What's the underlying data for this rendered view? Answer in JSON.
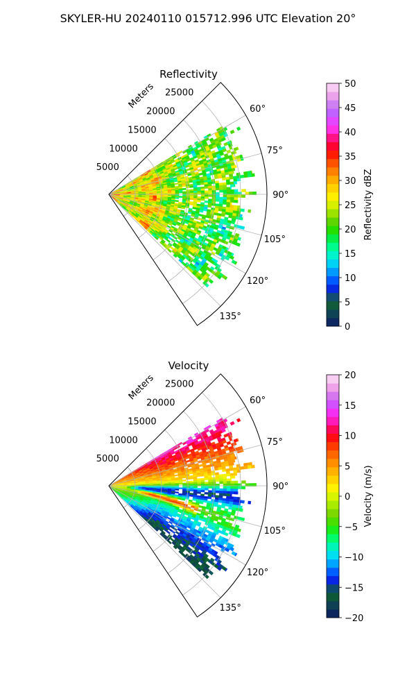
{
  "figure": {
    "suptitle": "SKYLER-HU  20240110  015712.996 UTC Elevation 20°"
  },
  "chart_data": [
    {
      "type": "heatmap",
      "projection": "polar-sector",
      "title": "Reflectivity",
      "range_label": "Meters",
      "theta_min_deg": 45,
      "theta_max_deg": 146,
      "r_max": 30000,
      "angle_ticks": [
        {
          "deg": 60,
          "label": "60°"
        },
        {
          "deg": 75,
          "label": "75°"
        },
        {
          "deg": 90,
          "label": "90°"
        },
        {
          "deg": 105,
          "label": "105°"
        },
        {
          "deg": 120,
          "label": "120°"
        },
        {
          "deg": 135,
          "label": "135°"
        }
      ],
      "range_ticks": [
        {
          "value": 5000,
          "label": "5000"
        },
        {
          "value": 10000,
          "label": "10000"
        },
        {
          "value": 15000,
          "label": "15000"
        },
        {
          "value": 20000,
          "label": "20000"
        },
        {
          "value": 25000,
          "label": "25000"
        }
      ],
      "data_extent": {
        "theta_deg": [
          59,
          133
        ],
        "r_max": 27000
      },
      "colorbar": {
        "label": "Reflectivity dBZ",
        "vmin": 0,
        "vmax": 50,
        "ticks": [
          "0",
          "5",
          "10",
          "15",
          "20",
          "25",
          "30",
          "35",
          "40",
          "45",
          "50"
        ],
        "tick_values": [
          0,
          5,
          10,
          15,
          20,
          25,
          30,
          35,
          40,
          45,
          50
        ]
      },
      "grid": true,
      "field_description_note": ""
    },
    {
      "type": "heatmap",
      "projection": "polar-sector",
      "title": "Velocity",
      "range_label": "Meters",
      "theta_min_deg": 45,
      "theta_max_deg": 146,
      "r_max": 30000,
      "angle_ticks": [
        {
          "deg": 60,
          "label": "60°"
        },
        {
          "deg": 75,
          "label": "75°"
        },
        {
          "deg": 90,
          "label": "90°"
        },
        {
          "deg": 105,
          "label": "105°"
        },
        {
          "deg": 120,
          "label": "120°"
        },
        {
          "deg": 135,
          "label": "135°"
        }
      ],
      "range_ticks": [
        {
          "value": 5000,
          "label": "5000"
        },
        {
          "value": 10000,
          "label": "10000"
        },
        {
          "value": 15000,
          "label": "15000"
        },
        {
          "value": 20000,
          "label": "20000"
        },
        {
          "value": 25000,
          "label": "25000"
        }
      ],
      "data_extent": {
        "theta_deg": [
          59,
          133
        ],
        "r_max": 27000
      },
      "colorbar": {
        "label": "Velocity (m/s)",
        "vmin": -20,
        "vmax": 20,
        "ticks": [
          "−20",
          "−15",
          "−10",
          "−5",
          "0",
          "5",
          "10",
          "15",
          "20"
        ],
        "tick_values": [
          -20,
          -15,
          -10,
          -5,
          0,
          5,
          10,
          15,
          20
        ]
      },
      "grid": true
    }
  ],
  "colormaps": {
    "reflectivity_stops": [
      "#0b1a5a",
      "#123a6b",
      "#0a4f3a",
      "#1a6b3a",
      "#0a1ccf",
      "#0047ff",
      "#0088ff",
      "#00c8ff",
      "#00f0d8",
      "#00ff9a",
      "#00f050",
      "#1fe000",
      "#5ad400",
      "#9ae400",
      "#d8f000",
      "#ffef00",
      "#ffcf00",
      "#ffa800",
      "#ff7a00",
      "#ff4a00",
      "#ff1000",
      "#ff0040",
      "#ff1aa0",
      "#ff3cff",
      "#d84cff",
      "#b070ff",
      "#e48ae8",
      "#f2b4ee",
      "#fbe0f8"
    ],
    "velocity_stops": [
      "#081350",
      "#12386a",
      "#0b4a38",
      "#0f6b34",
      "#0a14d8",
      "#0048ff",
      "#0092ff",
      "#00d8ff",
      "#00f2c8",
      "#00ff7a",
      "#10f020",
      "#45e000",
      "#7ad600",
      "#a8ec00",
      "#d8f500",
      "#fff200",
      "#ffd000",
      "#ffac00",
      "#ff8a00",
      "#ff6000",
      "#ff3000",
      "#ff0018",
      "#ff0a70",
      "#ff20d8",
      "#ee38ff",
      "#c060ff",
      "#e888e4",
      "#f4b8ee",
      "#fce4f8"
    ]
  }
}
